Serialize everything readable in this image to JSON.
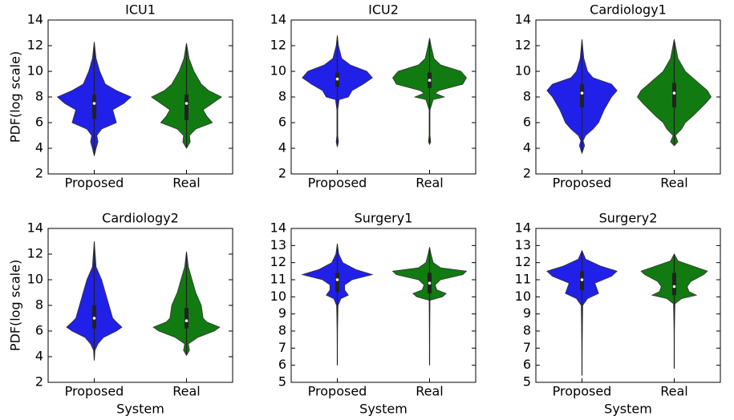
{
  "chart_data": [
    {
      "type": "violin",
      "title": "ICU1",
      "ylabel": "PDF(log scale)",
      "categories": [
        "Proposed",
        "Real"
      ],
      "ylim": [
        2,
        14
      ],
      "yticks": [
        2,
        4,
        6,
        8,
        10,
        12,
        14
      ],
      "violins": [
        {
          "color": "#2020e8",
          "y": [
            3.4,
            4,
            4.5,
            5,
            5.5,
            6,
            6.5,
            7,
            7.5,
            8,
            8.5,
            9,
            10,
            11,
            12.3
          ],
          "width": [
            0,
            0.05,
            0.1,
            0.07,
            0.2,
            0.6,
            0.55,
            0.5,
            0.8,
            1,
            0.6,
            0.3,
            0.15,
            0.05,
            0
          ],
          "whisker_low": 3.5,
          "q1": 6.3,
          "median": 7.5,
          "q3": 8.2,
          "whisker_high": 12.2
        },
        {
          "color": "#117a11",
          "y": [
            4,
            4.5,
            5,
            5.5,
            6,
            6.5,
            7,
            7.5,
            8,
            8.5,
            9,
            10,
            11,
            12.2
          ],
          "width": [
            0,
            0.1,
            0.08,
            0.25,
            0.7,
            0.55,
            0.45,
            0.7,
            0.95,
            0.6,
            0.4,
            0.2,
            0.07,
            0
          ],
          "whisker_low": 4.1,
          "q1": 6.2,
          "median": 7.5,
          "q3": 8.2,
          "whisker_high": 12.1
        }
      ]
    },
    {
      "type": "violin",
      "title": "ICU2",
      "categories": [
        "Proposed",
        "Real"
      ],
      "ylim": [
        2,
        14
      ],
      "yticks": [
        2,
        4,
        6,
        8,
        10,
        12,
        14
      ],
      "violins": [
        {
          "color": "#2020e8",
          "y": [
            4.1,
            4.5,
            5,
            7,
            7.8,
            8,
            8.5,
            9,
            9.5,
            10,
            10.5,
            11,
            12,
            12.8
          ],
          "width": [
            0,
            0.03,
            0.01,
            0.01,
            0.05,
            0.3,
            0.4,
            0.7,
            0.95,
            0.8,
            0.35,
            0.12,
            0.03,
            0
          ],
          "whisker_low": 4.2,
          "q1": 8.8,
          "median": 9.4,
          "q3": 9.9,
          "whisker_high": 12.7
        },
        {
          "color": "#117a11",
          "y": [
            4.3,
            4.5,
            5,
            7,
            7.8,
            8,
            8.3,
            8.5,
            9,
            9.5,
            10,
            10.5,
            11,
            12,
            12.6
          ],
          "width": [
            0,
            0.03,
            0.01,
            0.01,
            0.1,
            0.4,
            0.15,
            0.25,
            0.9,
            1,
            0.85,
            0.3,
            0.12,
            0.04,
            0
          ],
          "whisker_low": 4.4,
          "q1": 8.7,
          "median": 9.3,
          "q3": 9.9,
          "whisker_high": 12.5
        }
      ]
    },
    {
      "type": "violin",
      "title": "Cardiology1",
      "categories": [
        "Proposed",
        "Real"
      ],
      "ylim": [
        2,
        14
      ],
      "yticks": [
        2,
        4,
        6,
        8,
        10,
        12,
        14
      ],
      "violins": [
        {
          "color": "#2020e8",
          "y": [
            3.6,
            4.2,
            4.6,
            5,
            5.5,
            6,
            7,
            8,
            8.5,
            9,
            9.5,
            10,
            11,
            12.5
          ],
          "width": [
            0,
            0.07,
            0.03,
            0.1,
            0.3,
            0.45,
            0.6,
            0.8,
            0.95,
            0.8,
            0.3,
            0.15,
            0.05,
            0
          ],
          "whisker_low": 3.7,
          "q1": 7.2,
          "median": 8.3,
          "q3": 9.0,
          "whisker_high": 12.4
        },
        {
          "color": "#117a11",
          "y": [
            4.2,
            4.5,
            5,
            5.5,
            6,
            6.5,
            7.5,
            8,
            8.5,
            9,
            9.5,
            10,
            11,
            12.5
          ],
          "width": [
            0,
            0.1,
            0.03,
            0.2,
            0.3,
            0.5,
            0.85,
            1,
            0.9,
            0.7,
            0.5,
            0.3,
            0.1,
            0
          ],
          "whisker_low": 4.3,
          "q1": 7.2,
          "median": 8.3,
          "q3": 9.1,
          "whisker_high": 12.4
        }
      ]
    },
    {
      "type": "violin",
      "title": "Cardiology2",
      "ylabel": "PDF(log scale)",
      "xlabel": "System",
      "categories": [
        "Proposed",
        "Real"
      ],
      "ylim": [
        2,
        14
      ],
      "yticks": [
        2,
        4,
        6,
        8,
        10,
        12,
        14
      ],
      "violins": [
        {
          "color": "#2020e8",
          "y": [
            3.7,
            4.5,
            5,
            5.5,
            6,
            6.3,
            6.7,
            7,
            8,
            9,
            10,
            11,
            13
          ],
          "width": [
            0,
            0.02,
            0.1,
            0.25,
            0.6,
            0.75,
            0.6,
            0.5,
            0.4,
            0.3,
            0.2,
            0.05,
            0
          ],
          "whisker_low": 3.8,
          "q1": 6.2,
          "median": 7.0,
          "q3": 8.0,
          "whisker_high": 12.9
        },
        {
          "color": "#117a11",
          "y": [
            4.1,
            4.5,
            5,
            5.5,
            6,
            6.3,
            6.7,
            7,
            8,
            9,
            10,
            11,
            12.2
          ],
          "width": [
            0,
            0.08,
            0.05,
            0.3,
            0.75,
            0.9,
            0.55,
            0.45,
            0.4,
            0.25,
            0.15,
            0.05,
            0
          ],
          "whisker_low": 4.2,
          "q1": 6.2,
          "median": 6.8,
          "q3": 7.8,
          "whisker_high": 12.1
        }
      ]
    },
    {
      "type": "violin",
      "title": "Surgery1",
      "xlabel": "System",
      "categories": [
        "Proposed",
        "Real"
      ],
      "ylim": [
        5,
        14
      ],
      "yticks": [
        5,
        6,
        7,
        8,
        9,
        10,
        11,
        12,
        13,
        14
      ],
      "violins": [
        {
          "color": "#2020e8",
          "y": [
            6,
            8,
            9.5,
            9.9,
            10.1,
            10.4,
            10.7,
            11,
            11.3,
            11.6,
            12,
            12.5,
            13.1
          ],
          "width": [
            0,
            0.005,
            0.02,
            0.1,
            0.3,
            0.2,
            0.2,
            0.4,
            0.95,
            0.5,
            0.15,
            0.04,
            0
          ],
          "whisker_low": 6,
          "q1": 10.3,
          "median": 11.0,
          "q3": 11.4,
          "whisker_high": 13.1
        },
        {
          "color": "#117a11",
          "y": [
            6,
            8,
            9.8,
            10,
            10.2,
            10.4,
            10.7,
            11,
            11.3,
            11.5,
            11.7,
            12,
            12.5,
            12.9
          ],
          "width": [
            0,
            0.005,
            0.01,
            0.35,
            0.45,
            0.2,
            0.15,
            0.3,
            0.9,
            1.0,
            0.3,
            0.1,
            0.04,
            0
          ],
          "whisker_low": 6,
          "q1": 10.2,
          "median": 10.8,
          "q3": 11.4,
          "whisker_high": 12.9
        }
      ]
    },
    {
      "type": "violin",
      "title": "Surgery2",
      "xlabel": "System",
      "categories": [
        "Proposed",
        "Real"
      ],
      "ylim": [
        5,
        14
      ],
      "yticks": [
        5,
        6,
        7,
        8,
        9,
        10,
        11,
        12,
        13,
        14
      ],
      "violins": [
        {
          "color": "#2020e8",
          "y": [
            5.4,
            7,
            9.5,
            9.9,
            10.2,
            10.5,
            10.8,
            11.2,
            11.5,
            11.8,
            12.2,
            12.7
          ],
          "width": [
            0,
            0.005,
            0.02,
            0.15,
            0.45,
            0.4,
            0.35,
            0.8,
            0.95,
            0.5,
            0.1,
            0
          ],
          "whisker_low": 5.4,
          "q1": 10.4,
          "median": 11.0,
          "q3": 11.5,
          "whisker_high": 12.7
        },
        {
          "color": "#117a11",
          "y": [
            5.8,
            8,
            9.6,
            9.9,
            10.1,
            10.3,
            10.6,
            10.9,
            11.3,
            11.5,
            11.8,
            12.1,
            12.5
          ],
          "width": [
            0,
            0.005,
            0.02,
            0.2,
            0.6,
            0.4,
            0.35,
            0.45,
            0.8,
            0.9,
            0.5,
            0.1,
            0
          ],
          "whisker_low": 5.8,
          "q1": 10.1,
          "median": 10.6,
          "q3": 11.4,
          "whisker_high": 12.5
        }
      ]
    }
  ]
}
